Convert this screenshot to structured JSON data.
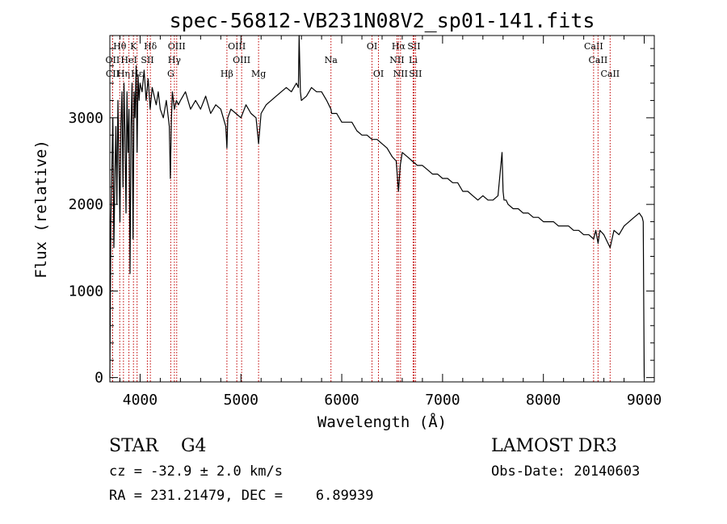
{
  "chart_data": {
    "type": "line",
    "title": "spec-56812-VB231N08V2_sp01-141.fits",
    "xlabel": "Wavelength (Å)",
    "ylabel": "Flux (relative)",
    "xlim": [
      3700,
      9100
    ],
    "ylim": [
      -50,
      3950
    ],
    "xticks": [
      4000,
      5000,
      6000,
      7000,
      8000,
      9000
    ],
    "xtick_labels": [
      "4000",
      "5000",
      "6000",
      "7000",
      "8000",
      "9000"
    ],
    "yticks": [
      0,
      1000,
      2000,
      3000
    ],
    "ytick_labels": [
      "0",
      "1000",
      "2000",
      "3000"
    ],
    "series": [
      {
        "name": "flux",
        "x": [
          3700,
          3710,
          3720,
          3730,
          3740,
          3750,
          3760,
          3770,
          3780,
          3790,
          3800,
          3810,
          3820,
          3830,
          3840,
          3850,
          3860,
          3870,
          3880,
          3890,
          3900,
          3910,
          3920,
          3930,
          3940,
          3950,
          3960,
          3970,
          3980,
          3990,
          4000,
          4020,
          4040,
          4060,
          4080,
          4100,
          4120,
          4140,
          4160,
          4180,
          4200,
          4230,
          4260,
          4290,
          4300,
          4310,
          4320,
          4340,
          4360,
          4380,
          4400,
          4450,
          4500,
          4550,
          4600,
          4650,
          4700,
          4750,
          4800,
          4850,
          4861,
          4870,
          4900,
          4950,
          5000,
          5050,
          5100,
          5150,
          5175,
          5200,
          5250,
          5300,
          5350,
          5400,
          5450,
          5500,
          5550,
          5570,
          5577,
          5590,
          5600,
          5650,
          5700,
          5750,
          5800,
          5850,
          5893,
          5900,
          5950,
          6000,
          6050,
          6100,
          6150,
          6200,
          6250,
          6300,
          6350,
          6400,
          6450,
          6500,
          6540,
          6563,
          6580,
          6600,
          6650,
          6700,
          6750,
          6800,
          6850,
          6900,
          6950,
          7000,
          7050,
          7100,
          7150,
          7200,
          7250,
          7300,
          7350,
          7400,
          7450,
          7500,
          7550,
          7590,
          7600,
          7610,
          7630,
          7650,
          7700,
          7750,
          7800,
          7850,
          7900,
          7950,
          8000,
          8050,
          8100,
          8150,
          8200,
          8250,
          8300,
          8350,
          8400,
          8450,
          8498,
          8520,
          8542,
          8560,
          8600,
          8662,
          8700,
          8750,
          8800,
          8850,
          8900,
          8950,
          8980,
          8990,
          9000
        ],
        "values": [
          0,
          1800,
          2400,
          3000,
          1500,
          2300,
          2900,
          2000,
          3200,
          2500,
          1800,
          2900,
          3300,
          2200,
          3400,
          2800,
          1900,
          3300,
          2600,
          3100,
          1200,
          2900,
          3400,
          1600,
          3300,
          3000,
          3600,
          2600,
          3500,
          3200,
          3400,
          3300,
          3550,
          3200,
          3450,
          3100,
          3350,
          3250,
          3150,
          3300,
          3100,
          3000,
          3200,
          2900,
          2300,
          2950,
          3300,
          3100,
          3200,
          3150,
          3200,
          3300,
          3100,
          3200,
          3100,
          3250,
          3050,
          3150,
          3100,
          2900,
          2650,
          3000,
          3100,
          3050,
          3000,
          3150,
          3050,
          3000,
          2700,
          3050,
          3150,
          3200,
          3250,
          3300,
          3350,
          3300,
          3400,
          3350,
          3950,
          3300,
          3200,
          3250,
          3350,
          3300,
          3300,
          3200,
          3100,
          3050,
          3050,
          2950,
          2950,
          2950,
          2850,
          2800,
          2800,
          2750,
          2750,
          2700,
          2650,
          2550,
          2500,
          2150,
          2450,
          2600,
          2550,
          2500,
          2450,
          2450,
          2400,
          2350,
          2350,
          2300,
          2300,
          2250,
          2250,
          2150,
          2150,
          2100,
          2050,
          2100,
          2050,
          2050,
          2100,
          2600,
          2150,
          2050,
          2050,
          2000,
          1950,
          1950,
          1900,
          1900,
          1850,
          1850,
          1800,
          1800,
          1800,
          1750,
          1750,
          1750,
          1700,
          1700,
          1650,
          1650,
          1600,
          1700,
          1550,
          1700,
          1650,
          1500,
          1700,
          1650,
          1750,
          1800,
          1850,
          1900,
          1850,
          1800,
          0
        ]
      }
    ],
    "line_markers": [
      {
        "label": "Hθ",
        "x": 3798,
        "row": 1
      },
      {
        "label": "OII",
        "x": 3727,
        "row": 2
      },
      {
        "label": "CII",
        "x": 3727,
        "row": 3
      },
      {
        "label": "Hη",
        "x": 3835,
        "row": 3
      },
      {
        "label": "HeI",
        "x": 3889,
        "row": 2
      },
      {
        "label": "K",
        "x": 3934,
        "row": 1
      },
      {
        "label": "Hε",
        "x": 3970,
        "row": 3
      },
      {
        "label": "Hδ",
        "x": 4102,
        "row": 1
      },
      {
        "label": "SII",
        "x": 4072,
        "row": 2
      },
      {
        "label": "OIII",
        "x": 4363,
        "row": 1
      },
      {
        "label": "Hγ",
        "x": 4340,
        "row": 2
      },
      {
        "label": "G",
        "x": 4304,
        "row": 3
      },
      {
        "label": "Hβ",
        "x": 4861,
        "row": 3
      },
      {
        "label": "OIII",
        "x": 4959,
        "row": 1
      },
      {
        "label": "OIII",
        "x": 5007,
        "row": 2
      },
      {
        "label": "Mg",
        "x": 5175,
        "row": 3
      },
      {
        "label": "Na",
        "x": 5893,
        "row": 2
      },
      {
        "label": "OI",
        "x": 6300,
        "row": 1
      },
      {
        "label": "OI",
        "x": 6364,
        "row": 3
      },
      {
        "label": "Hα",
        "x": 6563,
        "row": 1
      },
      {
        "label": "NII",
        "x": 6548,
        "row": 2
      },
      {
        "label": "NII",
        "x": 6583,
        "row": 3
      },
      {
        "label": "Li",
        "x": 6708,
        "row": 2
      },
      {
        "label": "SII",
        "x": 6716,
        "row": 1
      },
      {
        "label": "SII",
        "x": 6731,
        "row": 3
      },
      {
        "label": "CaII",
        "x": 8498,
        "row": 1
      },
      {
        "label": "CaII",
        "x": 8542,
        "row": 2
      },
      {
        "label": "CaII",
        "x": 8662,
        "row": 3
      }
    ]
  },
  "footer": {
    "classification": "STAR    G4",
    "survey": "LAMOST DR3",
    "redshift": "cz = -32.9 ± 2.0 km/s",
    "obs_date": "Obs-Date: 20140603",
    "coords": "RA = 231.21479, DEC =    6.89939"
  }
}
